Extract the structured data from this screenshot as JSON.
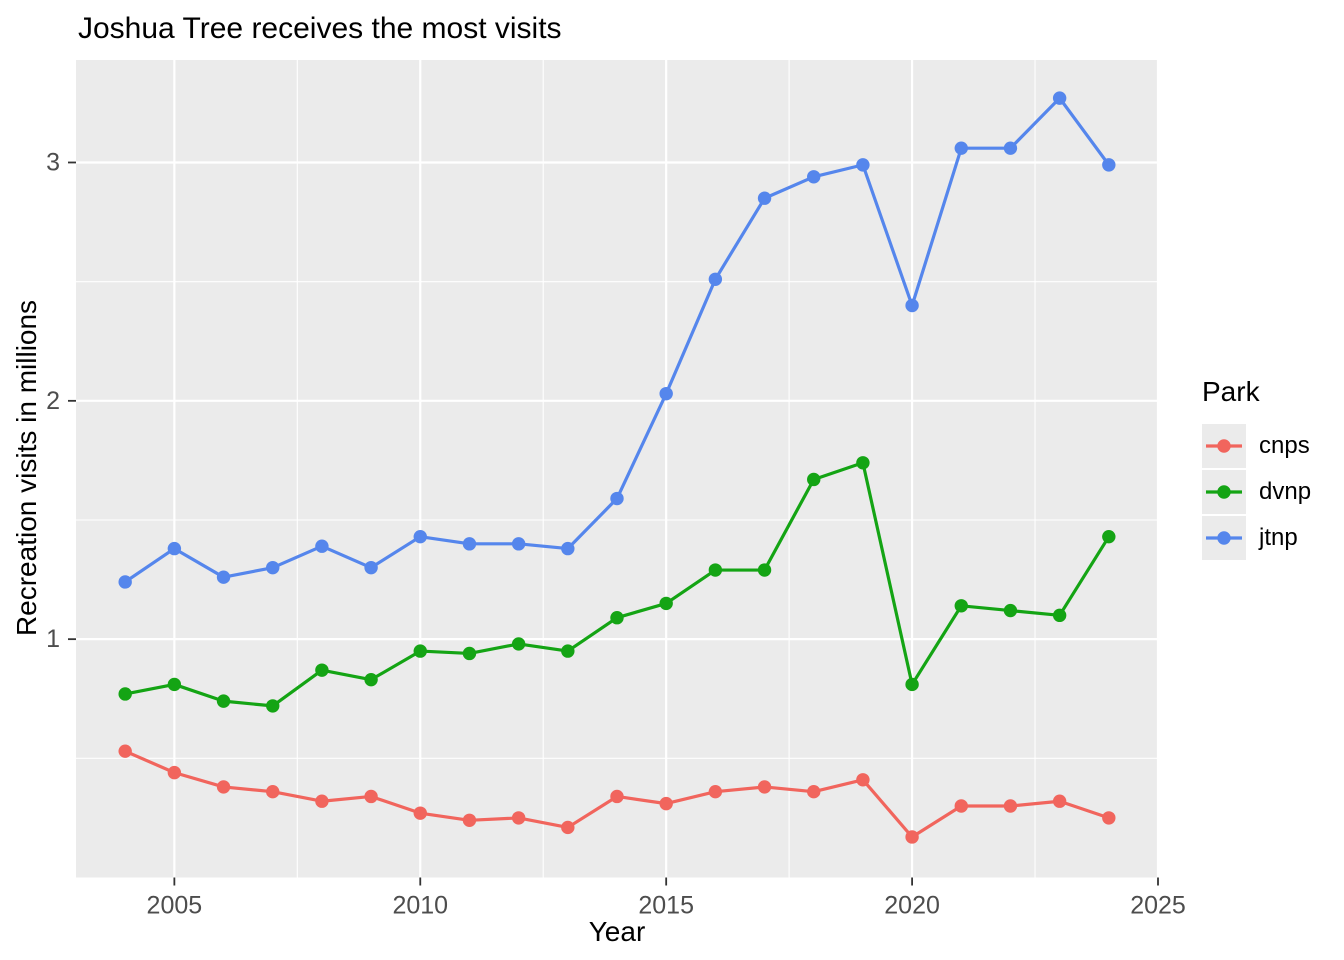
{
  "title": "Joshua Tree receives the most visits",
  "chart_data": {
    "type": "line",
    "x": [
      2004,
      2005,
      2006,
      2007,
      2008,
      2009,
      2010,
      2011,
      2012,
      2013,
      2014,
      2015,
      2016,
      2017,
      2018,
      2019,
      2020,
      2021,
      2022,
      2023,
      2024
    ],
    "series": [
      {
        "name": "cnps",
        "color": "#F1655D",
        "values": [
          0.53,
          0.44,
          0.38,
          0.36,
          0.32,
          0.34,
          0.27,
          0.24,
          0.25,
          0.21,
          0.34,
          0.31,
          0.36,
          0.38,
          0.36,
          0.41,
          0.17,
          0.3,
          0.3,
          0.32,
          0.25
        ]
      },
      {
        "name": "dvnp",
        "color": "#14A414",
        "values": [
          0.77,
          0.81,
          0.74,
          0.72,
          0.87,
          0.83,
          0.95,
          0.94,
          0.98,
          0.95,
          1.09,
          1.15,
          1.29,
          1.29,
          1.67,
          1.74,
          0.81,
          1.14,
          1.12,
          1.1,
          1.43
        ]
      },
      {
        "name": "jtnp",
        "color": "#5586EC",
        "values": [
          1.24,
          1.38,
          1.26,
          1.3,
          1.39,
          1.3,
          1.43,
          1.4,
          1.4,
          1.38,
          1.59,
          2.03,
          2.51,
          2.85,
          2.94,
          2.99,
          2.4,
          3.06,
          3.06,
          3.27,
          2.99
        ]
      }
    ],
    "title": "Joshua Tree receives the most visits",
    "xlabel": "Year",
    "ylabel": "Recreation visits in millions",
    "legend_title": "Park",
    "legend_position": "right",
    "x_ticks": [
      2005,
      2010,
      2015,
      2020,
      2025
    ],
    "y_ticks": [
      1,
      2,
      3
    ],
    "x_minor_ticks": [
      2007.5,
      2012.5,
      2017.5,
      2022.5
    ],
    "y_minor_ticks": [
      0.5,
      1.5,
      2.5
    ],
    "xlim": [
      2003,
      2025
    ],
    "ylim": [
      0,
      3.43
    ],
    "grid": true,
    "panel_background": "#EBEBEB",
    "gridline_color": "#FFFFFF",
    "tick_label_color": "#4D4D4D",
    "tick_mark_color": "#333333"
  }
}
